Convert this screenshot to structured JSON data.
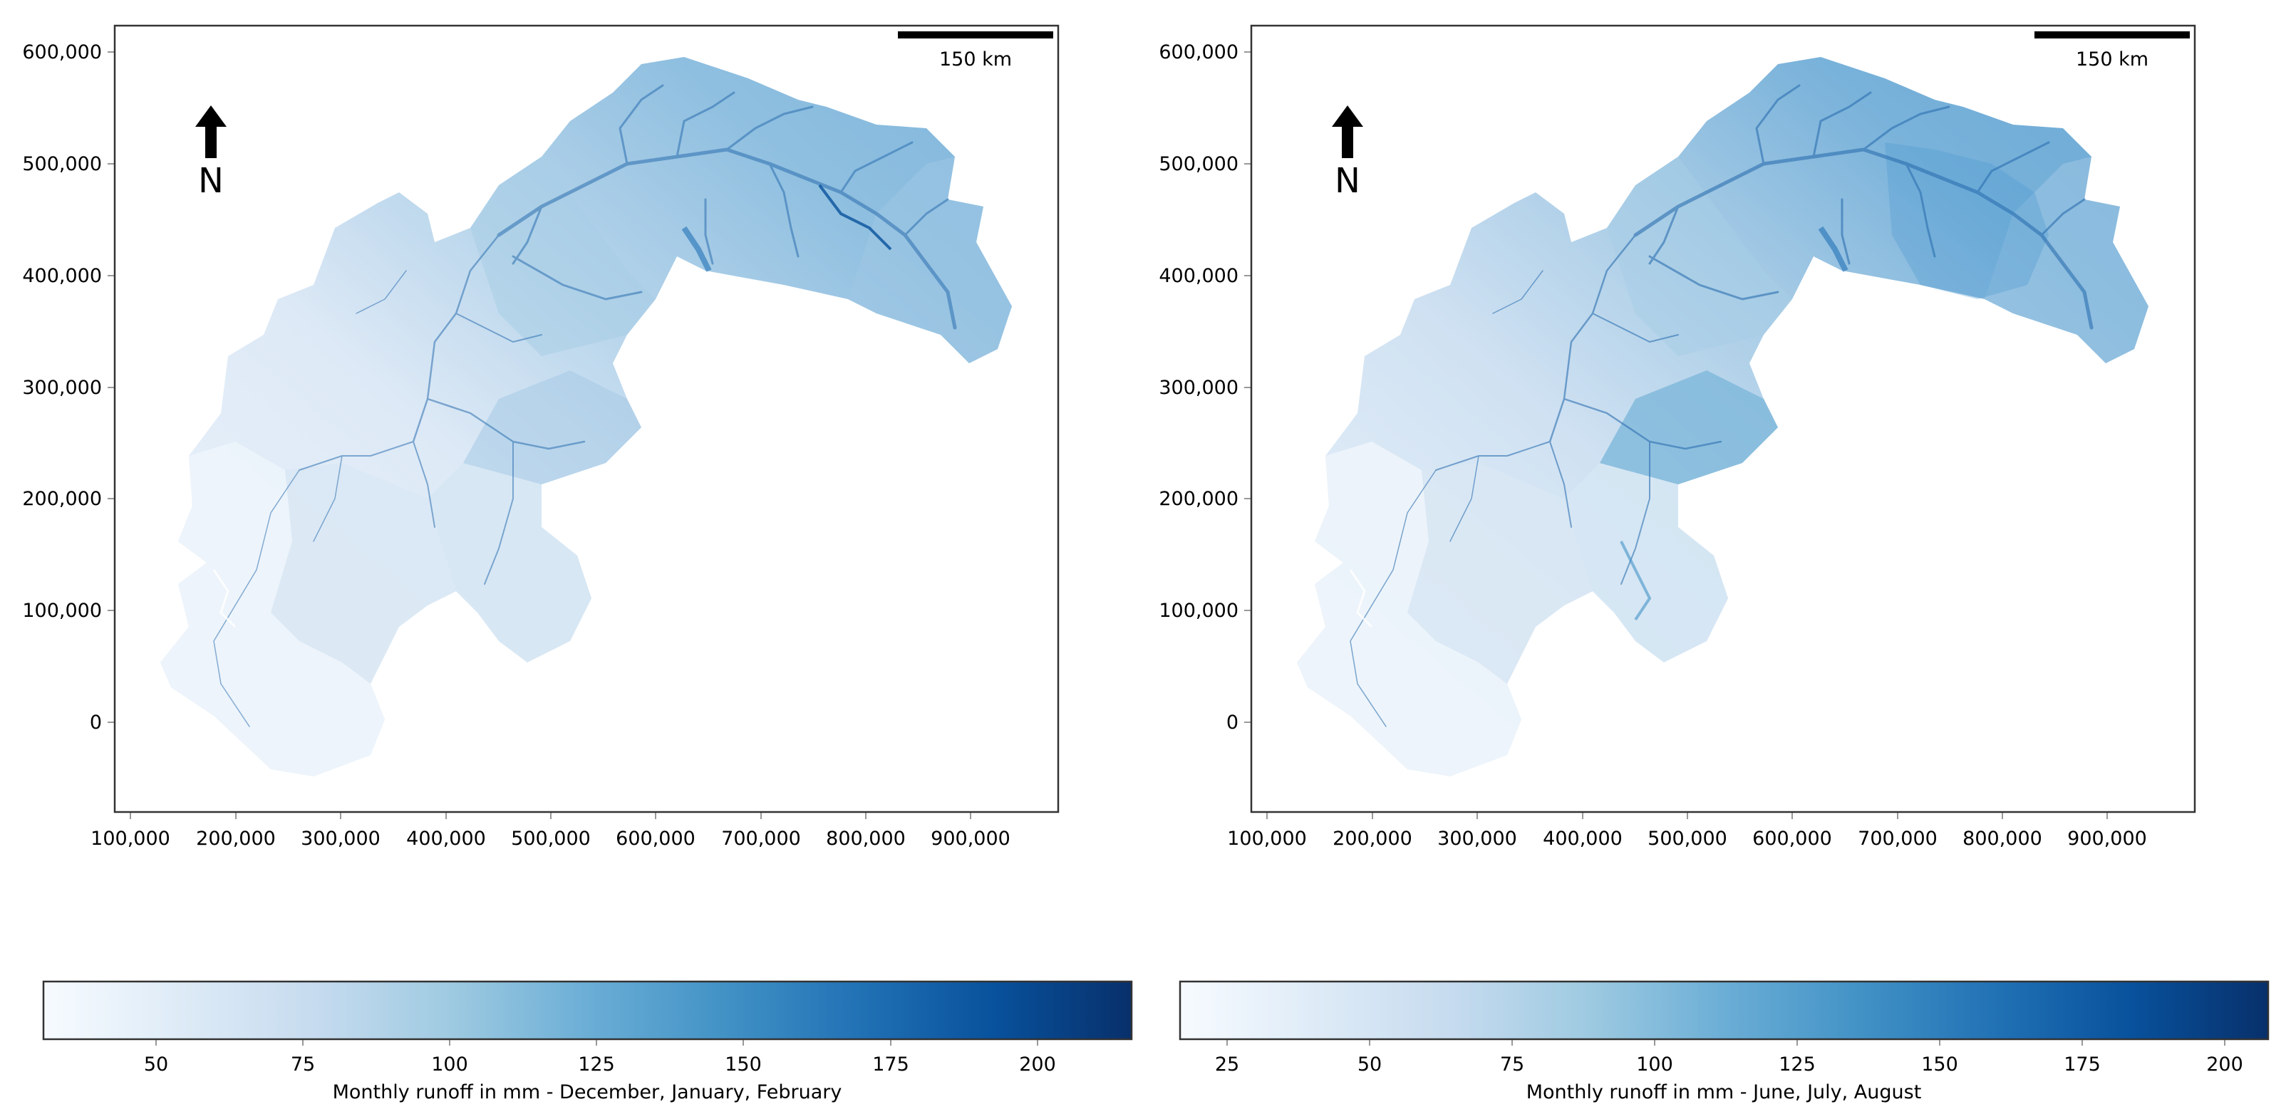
{
  "maps": [
    {
      "id": "winter",
      "scale_bar_label": "150 km",
      "north_label": "N",
      "x_ticks": [
        "100,000",
        "200,000",
        "300,000",
        "400,000",
        "500,000",
        "600,000",
        "700,000",
        "800,000",
        "900,000"
      ],
      "y_ticks": [
        "600,000",
        "500,000",
        "400,000",
        "300,000",
        "200,000",
        "100,000",
        "0"
      ],
      "colorbar": {
        "ticks": [
          "50",
          "75",
          "100",
          "125",
          "150",
          "175",
          "200"
        ],
        "label": "Monthly runoff in mm - December, January, February"
      }
    },
    {
      "id": "summer",
      "scale_bar_label": "150 km",
      "north_label": "N",
      "x_ticks": [
        "100,000",
        "200,000",
        "300,000",
        "400,000",
        "500,000",
        "600,000",
        "700,000",
        "800,000",
        "900,000"
      ],
      "y_ticks": [
        "600,000",
        "500,000",
        "400,000",
        "300,000",
        "200,000",
        "100,000",
        "0"
      ],
      "colorbar": {
        "ticks": [
          "25",
          "50",
          "75",
          "100",
          "125",
          "150",
          "175",
          "200"
        ],
        "label": "Monthly runoff in mm - June, July, August"
      }
    }
  ],
  "colors": {
    "ramp": [
      "#f7fbff",
      "#deebf7",
      "#c6dbef",
      "#9ecae1",
      "#6baed6",
      "#4292c6",
      "#2171b5",
      "#08519c",
      "#08306b"
    ],
    "frame": "#333333",
    "river": "#2c6fb0"
  }
}
